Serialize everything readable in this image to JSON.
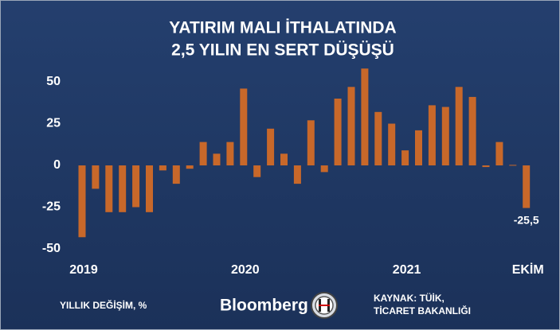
{
  "chart_data": {
    "type": "bar",
    "title": [
      "YATIRIM MALI İTHALATINDA",
      "2,5 YILIN EN SERT DÜŞÜŞÜ"
    ],
    "categories": [
      "2019",
      null,
      null,
      null,
      null,
      null,
      null,
      null,
      null,
      null,
      null,
      null,
      "2020",
      null,
      null,
      null,
      null,
      null,
      null,
      null,
      null,
      null,
      null,
      null,
      "2021",
      null,
      null,
      null,
      null,
      null,
      null,
      null,
      null,
      "EKİM"
    ],
    "values": [
      -43,
      -14,
      -28,
      -28,
      -25,
      -28,
      -3,
      -11,
      -2,
      14,
      7,
      14,
      46,
      -7,
      22,
      7,
      -11,
      27,
      -4,
      40,
      47,
      58,
      32,
      25,
      9,
      21,
      36,
      35,
      47,
      41,
      -1,
      14,
      0.3,
      -25.5
    ],
    "value_labels": [
      null,
      null,
      null,
      null,
      null,
      null,
      null,
      null,
      null,
      null,
      null,
      null,
      null,
      null,
      null,
      null,
      null,
      null,
      null,
      null,
      null,
      null,
      null,
      null,
      null,
      null,
      null,
      null,
      null,
      null,
      null,
      null,
      null,
      "-25,5"
    ],
    "color": "#c8682a",
    "ylim": [
      -50,
      50
    ],
    "yticks": [
      -50,
      -25,
      0,
      25,
      50
    ],
    "unit_label": "YILLIK DEĞİŞİM, %",
    "brand": "Bloomberg",
    "source": [
      "KAYNAK: TÜİK,",
      "TİCARET BAKANLIĞI"
    ]
  }
}
